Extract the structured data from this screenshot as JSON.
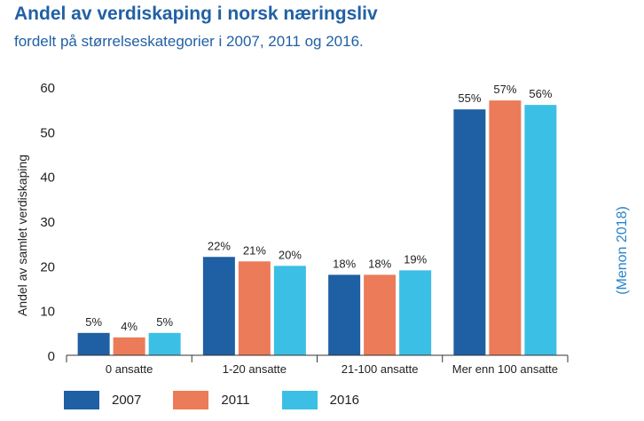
{
  "header": {
    "title": "Andel av verdiskaping i norsk næringsliv",
    "subtitle": "fordelt på størrelseskategorier i 2007, 2011 og 2016."
  },
  "source_note": "(Menon 2018)",
  "colors": {
    "s2007": "#1f5fa3",
    "s2011": "#ec7b59",
    "s2016": "#3cbfe5"
  },
  "chart_data": {
    "type": "bar",
    "title": "Andel av verdiskaping i norsk næringsliv",
    "ylabel": "Andel av samlet verdiskaping",
    "xlabel": "",
    "ylim": [
      0,
      60
    ],
    "yticks": [
      0,
      10,
      20,
      30,
      40,
      50,
      60
    ],
    "categories": [
      "0 ansatte",
      "1-20 ansatte",
      "21-100 ansatte",
      "Mer enn 100 ansatte"
    ],
    "series": [
      {
        "name": "2007",
        "values": [
          5,
          22,
          18,
          55
        ],
        "labels": [
          "5%",
          "22%",
          "18%",
          "55%"
        ],
        "color": "#1f5fa3"
      },
      {
        "name": "2011",
        "values": [
          4,
          21,
          18,
          57
        ],
        "labels": [
          "4%",
          "21%",
          "18%",
          "57%"
        ],
        "color": "#ec7b59"
      },
      {
        "name": "2016",
        "values": [
          5,
          20,
          19,
          56
        ],
        "labels": [
          "5%",
          "20%",
          "19%",
          "56%"
        ],
        "color": "#3cbfe5"
      }
    ],
    "legend_position": "bottom-left",
    "grid": false
  }
}
